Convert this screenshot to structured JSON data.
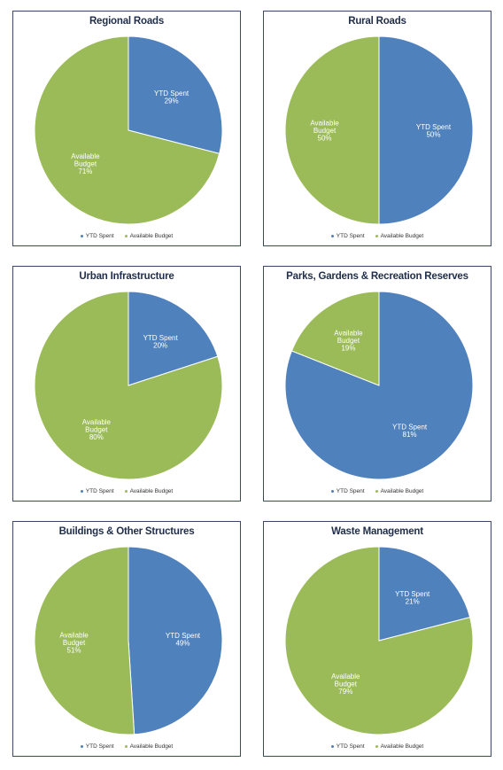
{
  "colors": {
    "ytd_spent": "#4f81bd",
    "available_budget": "#9bbb59"
  },
  "legend": {
    "ytd_spent": "YTD Spent",
    "available_budget": "Available Budget"
  },
  "chart_data": [
    {
      "type": "pie",
      "title": "Regional Roads",
      "slices": [
        {
          "name": "YTD Spent",
          "label": [
            "YTD Spent"
          ],
          "percent_label": "29%",
          "value": 29
        },
        {
          "name": "Available Budget",
          "label": [
            "Available",
            "Budget"
          ],
          "percent_label": "71%",
          "value": 71
        }
      ]
    },
    {
      "type": "pie",
      "title": "Rural Roads",
      "slices": [
        {
          "name": "YTD Spent",
          "label": [
            "YTD Spent"
          ],
          "percent_label": "50%",
          "value": 50
        },
        {
          "name": "Available Budget",
          "label": [
            "Available",
            "Budget"
          ],
          "percent_label": "50%",
          "value": 50
        }
      ]
    },
    {
      "type": "pie",
      "title": "Urban Infrastructure",
      "slices": [
        {
          "name": "YTD Spent",
          "label": [
            "YTD Spent"
          ],
          "percent_label": "20%",
          "value": 20
        },
        {
          "name": "Available Budget",
          "label": [
            "Available",
            "Budget"
          ],
          "percent_label": "80%",
          "value": 80
        }
      ]
    },
    {
      "type": "pie",
      "title": "Parks, Gardens & Recreation Reserves",
      "slices": [
        {
          "name": "YTD Spent",
          "label": [
            "YTD Spent"
          ],
          "percent_label": "81%",
          "value": 81
        },
        {
          "name": "Available Budget",
          "label": [
            "Available",
            "Budget"
          ],
          "percent_label": "19%",
          "value": 19
        }
      ]
    },
    {
      "type": "pie",
      "title": "Buildings & Other Structures",
      "slices": [
        {
          "name": "YTD Spent",
          "label": [
            "YTD Spent"
          ],
          "percent_label": "49%",
          "value": 49
        },
        {
          "name": "Available Budget",
          "label": [
            "Available",
            "Budget"
          ],
          "percent_label": "51%",
          "value": 51
        }
      ]
    },
    {
      "type": "pie",
      "title": "Waste Management",
      "slices": [
        {
          "name": "YTD Spent",
          "label": [
            "YTD Spent"
          ],
          "percent_label": "21%",
          "value": 21
        },
        {
          "name": "Available Budget",
          "label": [
            "Available",
            "Budget"
          ],
          "percent_label": "79%",
          "value": 79
        }
      ]
    }
  ]
}
